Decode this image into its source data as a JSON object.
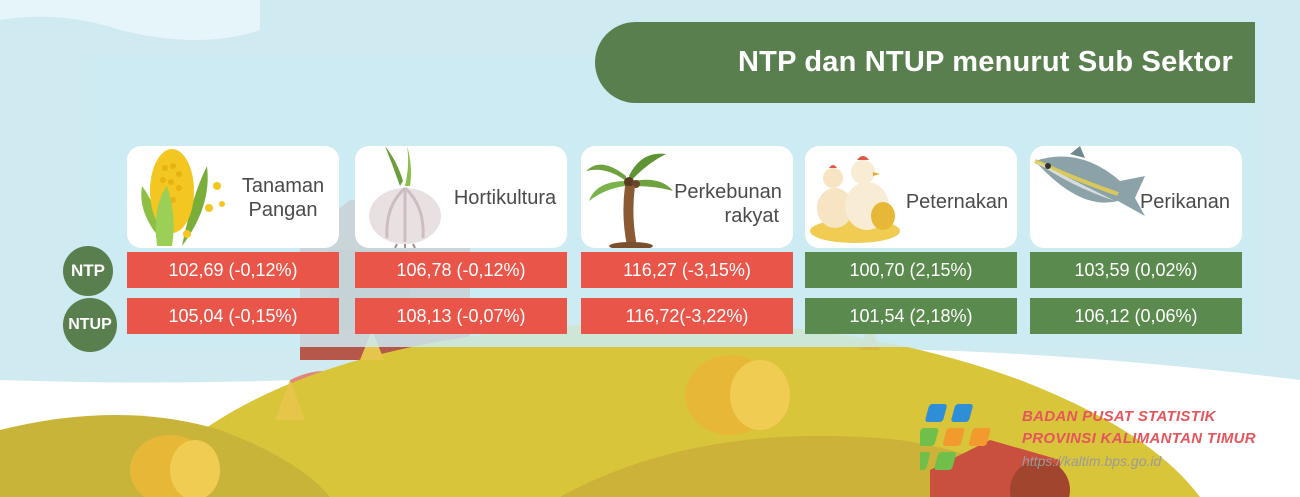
{
  "title": "NTP dan NTUP menurut Sub Sektor",
  "rows": {
    "ntp": "NTP",
    "ntup": "NTUP"
  },
  "sectors": [
    {
      "label_line1": "Tanaman",
      "label_line2": "Pangan",
      "icon": "corn-icon",
      "ntp": "102,69 (-0,12%)",
      "ntup": "105,04 (-0,15%)",
      "ntp_color": "#ea5549",
      "ntup_color": "#ea5549"
    },
    {
      "label_line1": "Hortikultura",
      "label_line2": "",
      "icon": "garlic-icon",
      "ntp": "106,78 (-0,12%)",
      "ntup": "108,13 (-0,07%)",
      "ntp_color": "#ea5549",
      "ntup_color": "#ea5549"
    },
    {
      "label_line1": "Perkebunan",
      "label_line2": "rakyat",
      "icon": "palm-tree-icon",
      "ntp": "116,27 (-3,15%)",
      "ntup": "116,72(-3,22%)",
      "ntp_color": "#ea5549",
      "ntup_color": "#ea5549"
    },
    {
      "label_line1": "Peternakan",
      "label_line2": "",
      "icon": "chicken-icon",
      "ntp": "100,70 (2,15%)",
      "ntup": "101,54 (2,18%)",
      "ntp_color": "#5b8a4e",
      "ntup_color": "#5b8a4e"
    },
    {
      "label_line1": "Perikanan",
      "label_line2": "",
      "icon": "fish-icon",
      "ntp": "103,59 (0,02%)",
      "ntup": "106,12 (0,06%)",
      "ntp_color": "#5b8a4e",
      "ntup_color": "#5b8a4e"
    }
  ],
  "logo": {
    "line1": "BADAN PUSAT STATISTIK",
    "line2": "PROVINSI KALIMANTAN TIMUR",
    "url": "https://kaltim.bps.go.id",
    "icon": "bps-logo-icon"
  }
}
